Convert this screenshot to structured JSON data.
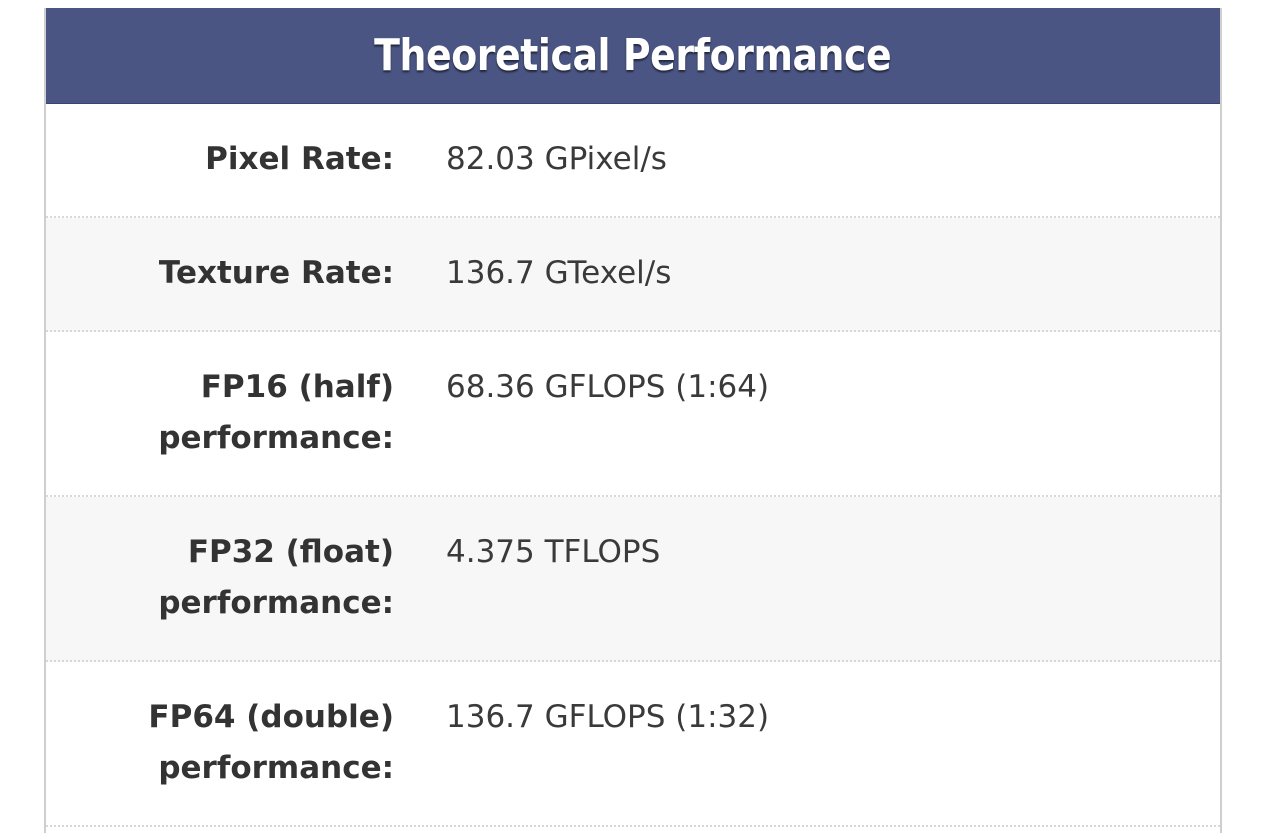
{
  "section": {
    "title": "Theoretical Performance"
  },
  "rows": [
    {
      "label": "Pixel Rate:",
      "value": "82.03 GPixel/s"
    },
    {
      "label": "Texture Rate:",
      "value": "136.7 GTexel/s"
    },
    {
      "label": "FP16 (half) performance:",
      "value": "68.36 GFLOPS (1:64)"
    },
    {
      "label": "FP32 (float) performance:",
      "value": "4.375 TFLOPS"
    },
    {
      "label": "FP64 (double) performance:",
      "value": "136.7 GFLOPS (1:32)"
    }
  ],
  "colors": {
    "header_background": "#4a5583",
    "header_text": "#ffffff",
    "row_alt_background": "#f7f7f7",
    "label_text": "#333333",
    "value_text": "#3a3a3a"
  }
}
